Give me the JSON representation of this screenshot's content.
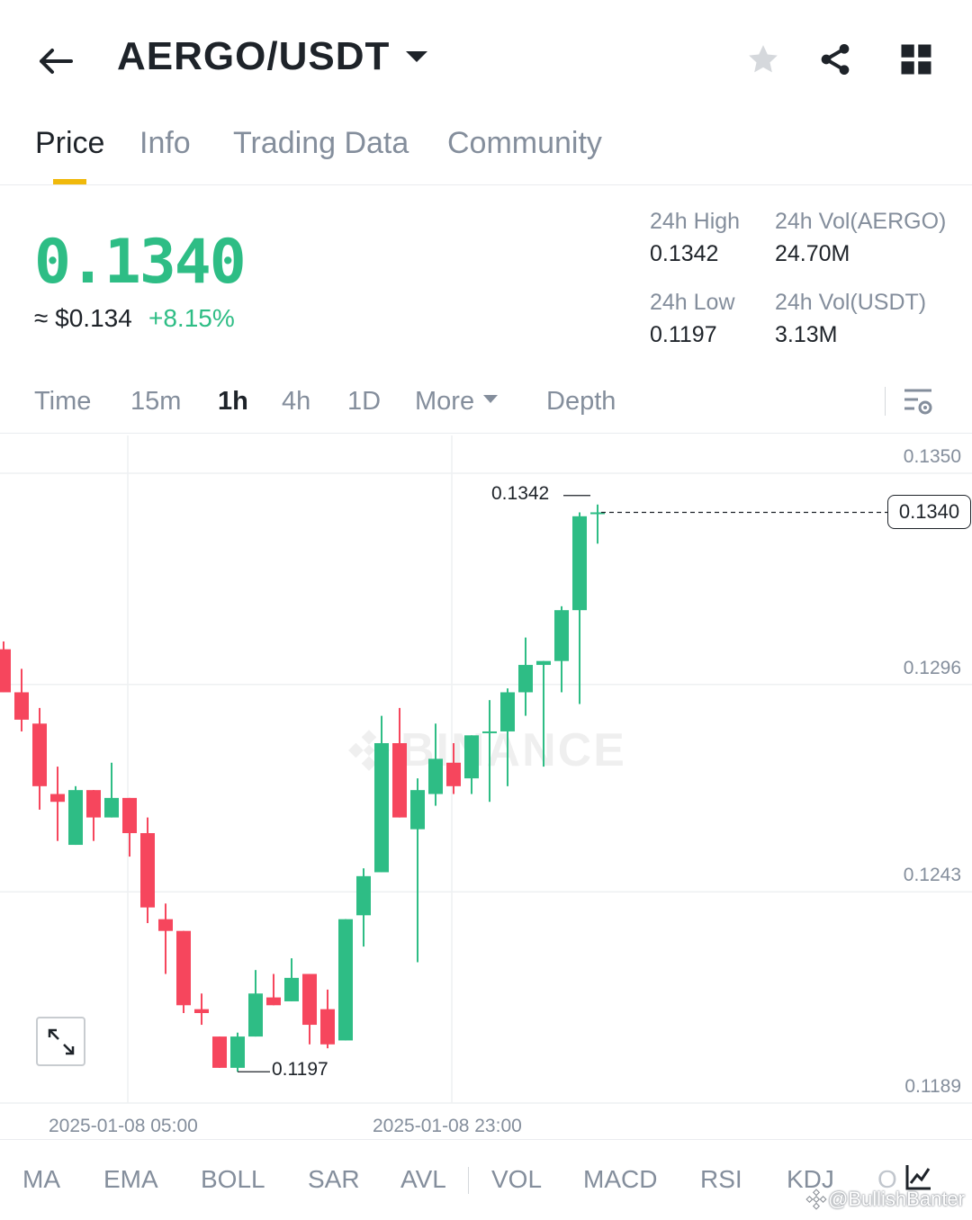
{
  "header": {
    "pair": "AERGO/USDT"
  },
  "tabs": [
    {
      "label": "Price",
      "active": true
    },
    {
      "label": "Info",
      "active": false
    },
    {
      "label": "Trading Data",
      "active": false
    },
    {
      "label": "Community",
      "active": false
    }
  ],
  "price": {
    "last": "0.1340",
    "usd": "≈ $0.134",
    "change": "+8.15%"
  },
  "stats": {
    "high_label": "24h High",
    "high_value": "0.1342",
    "low_label": "24h Low",
    "low_value": "0.1197",
    "vol_base_label": "24h Vol(AERGO)",
    "vol_base_value": "24.70M",
    "vol_quote_label": "24h Vol(USDT)",
    "vol_quote_value": "3.13M"
  },
  "intervals": [
    {
      "label": "Time",
      "active": false
    },
    {
      "label": "15m",
      "active": false
    },
    {
      "label": "1h",
      "active": true
    },
    {
      "label": "4h",
      "active": false
    },
    {
      "label": "1D",
      "active": false
    },
    {
      "label": "More",
      "active": false
    },
    {
      "label": "Depth",
      "active": false
    }
  ],
  "chart": {
    "watermark": "BINANCE",
    "current_price_tag": "0.1340",
    "max_label": "0.1342",
    "min_label": "0.1197"
  },
  "indicators": [
    "MA",
    "EMA",
    "BOLL",
    "SAR",
    "AVL",
    "VOL",
    "MACD",
    "RSI",
    "KDJ",
    "O"
  ],
  "credit": "@BullishBanter",
  "colors": {
    "up": "#2ebd85",
    "down": "#f6465d",
    "accent": "#f0b90b",
    "text": "#1e2329",
    "muted": "#848e9c"
  },
  "chart_data": {
    "type": "candlestick",
    "interval": "1h",
    "x_ticks": [
      "2025-01-08 05:00",
      "2025-01-08 23:00"
    ],
    "y_ticks": [
      "0.1350",
      "0.1296",
      "0.1243",
      "0.1189"
    ],
    "candles": [
      {
        "o": 0.1305,
        "h": 0.1307,
        "l": 0.1294,
        "c": 0.1294
      },
      {
        "o": 0.1294,
        "h": 0.13,
        "l": 0.1284,
        "c": 0.1287
      },
      {
        "o": 0.1286,
        "h": 0.129,
        "l": 0.1264,
        "c": 0.127
      },
      {
        "o": 0.1268,
        "h": 0.1275,
        "l": 0.1256,
        "c": 0.1266
      },
      {
        "o": 0.1255,
        "h": 0.127,
        "l": 0.1255,
        "c": 0.1269
      },
      {
        "o": 0.1269,
        "h": 0.1269,
        "l": 0.1256,
        "c": 0.1262
      },
      {
        "o": 0.1262,
        "h": 0.1276,
        "l": 0.1262,
        "c": 0.1267
      },
      {
        "o": 0.1267,
        "h": 0.1267,
        "l": 0.1252,
        "c": 0.1258
      },
      {
        "o": 0.1258,
        "h": 0.1262,
        "l": 0.1235,
        "c": 0.1239
      },
      {
        "o": 0.1236,
        "h": 0.124,
        "l": 0.1222,
        "c": 0.1233
      },
      {
        "o": 0.1233,
        "h": 0.1233,
        "l": 0.1212,
        "c": 0.1214
      },
      {
        "o": 0.1213,
        "h": 0.1217,
        "l": 0.1209,
        "c": 0.1212
      },
      {
        "o": 0.1206,
        "h": 0.1206,
        "l": 0.1198,
        "c": 0.1198
      },
      {
        "o": 0.1198,
        "h": 0.1207,
        "l": 0.1197,
        "c": 0.1206
      },
      {
        "o": 0.1206,
        "h": 0.1223,
        "l": 0.1206,
        "c": 0.1217
      },
      {
        "o": 0.1216,
        "h": 0.1222,
        "l": 0.1214,
        "c": 0.1214
      },
      {
        "o": 0.1215,
        "h": 0.1226,
        "l": 0.1215,
        "c": 0.1221
      },
      {
        "o": 0.1222,
        "h": 0.1222,
        "l": 0.1204,
        "c": 0.1209
      },
      {
        "o": 0.1213,
        "h": 0.1218,
        "l": 0.1203,
        "c": 0.1204
      },
      {
        "o": 0.1205,
        "h": 0.1236,
        "l": 0.1205,
        "c": 0.1236
      },
      {
        "o": 0.1237,
        "h": 0.1249,
        "l": 0.1229,
        "c": 0.1247
      },
      {
        "o": 0.1248,
        "h": 0.1288,
        "l": 0.1248,
        "c": 0.1281
      },
      {
        "o": 0.1281,
        "h": 0.129,
        "l": 0.1262,
        "c": 0.1262
      },
      {
        "o": 0.1259,
        "h": 0.1272,
        "l": 0.1225,
        "c": 0.1269
      },
      {
        "o": 0.1268,
        "h": 0.1286,
        "l": 0.1265,
        "c": 0.1277
      },
      {
        "o": 0.1276,
        "h": 0.1281,
        "l": 0.1268,
        "c": 0.127
      },
      {
        "o": 0.1272,
        "h": 0.1283,
        "l": 0.1268,
        "c": 0.1283
      },
      {
        "o": 0.1284,
        "h": 0.1292,
        "l": 0.1266,
        "c": 0.1284
      },
      {
        "o": 0.1284,
        "h": 0.1295,
        "l": 0.127,
        "c": 0.1294
      },
      {
        "o": 0.1294,
        "h": 0.1308,
        "l": 0.1288,
        "c": 0.1301
      },
      {
        "o": 0.1301,
        "h": 0.1302,
        "l": 0.1275,
        "c": 0.1302
      },
      {
        "o": 0.1302,
        "h": 0.1316,
        "l": 0.1294,
        "c": 0.1315
      },
      {
        "o": 0.1315,
        "h": 0.134,
        "l": 0.1291,
        "c": 0.1339
      },
      {
        "o": 0.134,
        "h": 0.1342,
        "l": 0.1332,
        "c": 0.134
      }
    ],
    "current_price": 0.134,
    "ylim": [
      0.1185,
      0.136
    ]
  }
}
